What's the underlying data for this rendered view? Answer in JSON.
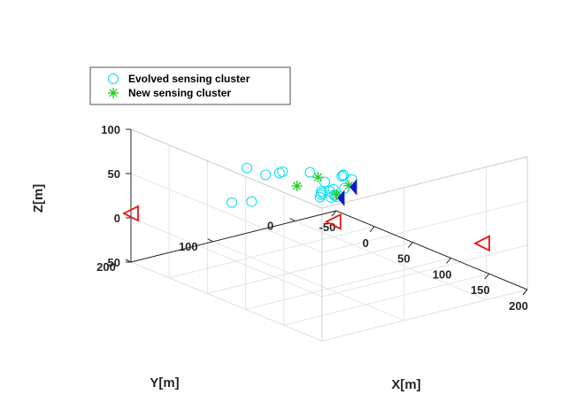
{
  "chart_data": {
    "type": "scatter",
    "title": "",
    "xlabel": "X[m]",
    "ylabel": "Y[m]",
    "zlabel": "Z[m]",
    "xlim": [
      -50,
      200
    ],
    "ylim": [
      -50,
      200
    ],
    "zlim": [
      -50,
      100
    ],
    "x_ticks": [
      "-50",
      "0",
      "50",
      "100",
      "150",
      "200"
    ],
    "y_ticks": [
      "0",
      "100",
      "200"
    ],
    "z_ticks": [
      "-50",
      "0",
      "50",
      "100"
    ],
    "grid": true,
    "legend_position": "top-left",
    "colors": {
      "evolved": "#00e0f0",
      "new": "#22cc22",
      "red_marker": "#ee1111",
      "blue_marker": "#1018cc"
    },
    "series": [
      {
        "name": "Evolved sensing cluster",
        "marker": "circle",
        "points": [
          [
            -3,
            12,
            3
          ],
          [
            2,
            2,
            5
          ],
          [
            7,
            5,
            1
          ],
          [
            10,
            8,
            2
          ],
          [
            5,
            20,
            4
          ],
          [
            12,
            14,
            2
          ],
          [
            15,
            10,
            3
          ],
          [
            -8,
            6,
            -2
          ],
          [
            -35,
            50,
            19
          ],
          [
            -20,
            105,
            6
          ],
          [
            -5,
            95,
            10
          ],
          [
            20,
            35,
            10
          ],
          [
            25,
            28,
            17
          ],
          [
            10,
            75,
            43
          ],
          [
            30,
            90,
            55
          ],
          [
            5,
            110,
            55
          ],
          [
            50,
            75,
            58
          ],
          [
            70,
            55,
            56
          ],
          [
            75,
            58,
            60
          ],
          [
            80,
            62,
            62
          ],
          [
            78,
            50,
            54
          ],
          [
            95,
            75,
            56
          ],
          [
            80,
            85,
            60
          ]
        ]
      },
      {
        "name": "New sensing cluster",
        "marker": "asterisk",
        "points": [
          [
            15,
            10,
            5
          ],
          [
            -10,
            35,
            12
          ],
          [
            90,
            65,
            55
          ],
          [
            55,
            70,
            53
          ]
        ]
      },
      {
        "name": "",
        "marker": "triangle-left",
        "points": [
          [
            -50,
            200,
            5
          ],
          [
            200,
            5,
            15
          ],
          [
            0,
            0,
            -33
          ]
        ]
      },
      {
        "name": "",
        "marker": "triangle-filled",
        "points": [
          [
            18,
            8,
            2
          ],
          [
            90,
            60,
            52
          ]
        ]
      }
    ]
  }
}
